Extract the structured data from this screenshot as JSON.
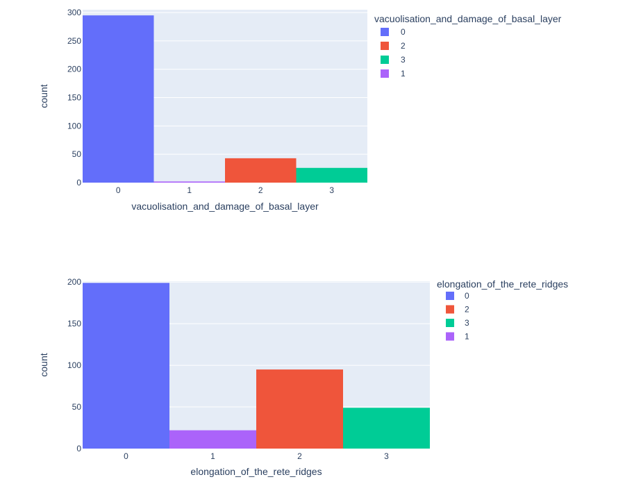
{
  "chart_data": [
    {
      "type": "bar",
      "xlabel": "vacuolisation_and_damage_of_basal_layer",
      "ylabel": "count",
      "ylim": [
        0,
        305
      ],
      "yticks": [
        0,
        50,
        100,
        150,
        200,
        250,
        300
      ],
      "categories": [
        "0",
        "1",
        "2",
        "3"
      ],
      "grid": true,
      "legend_placement": "right",
      "legend_title": "vacuolisation_and_damage_of_basal_layer",
      "series": [
        {
          "name": "0",
          "color": "#636efa",
          "x": "0",
          "value": 295
        },
        {
          "name": "2",
          "color": "#ef553b",
          "x": "2",
          "value": 43
        },
        {
          "name": "3",
          "color": "#00cc96",
          "x": "3",
          "value": 26
        },
        {
          "name": "1",
          "color": "#ab63fa",
          "x": "1",
          "value": 2
        }
      ]
    },
    {
      "type": "bar",
      "xlabel": "elongation_of_the_rete_ridges",
      "ylabel": "count",
      "ylim": [
        0,
        201
      ],
      "yticks": [
        0,
        50,
        100,
        150,
        200
      ],
      "categories": [
        "0",
        "1",
        "2",
        "3"
      ],
      "grid": true,
      "legend_placement": "right",
      "legend_title": "elongation_of_the_rete_ridges",
      "series": [
        {
          "name": "0",
          "color": "#636efa",
          "x": "0",
          "value": 199
        },
        {
          "name": "2",
          "color": "#ef553b",
          "x": "2",
          "value": 95
        },
        {
          "name": "3",
          "color": "#00cc96",
          "x": "3",
          "value": 49
        },
        {
          "name": "1",
          "color": "#ab63fa",
          "x": "1",
          "value": 22
        }
      ]
    }
  ],
  "colors": {
    "plot_background": "#e5ecf6",
    "gridline": "#ffffff",
    "text": "#2a3f5f"
  }
}
